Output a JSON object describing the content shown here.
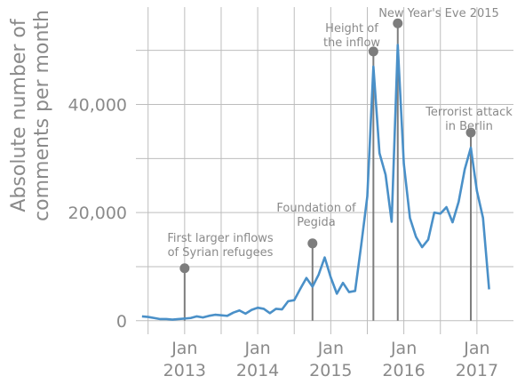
{
  "chart_data": {
    "type": "line",
    "title": "",
    "ylabel": "Absolute number of comments per month",
    "ylabel_lines": [
      "Absolute number of",
      "comments per month"
    ],
    "ylim": [
      -2500,
      58000
    ],
    "xlim": [
      "2012-05",
      "2017-07"
    ],
    "grid": true,
    "y_ticks": [
      {
        "value": 0,
        "label": "0"
      },
      {
        "value": 20000,
        "label": "20,000"
      },
      {
        "value": 40000,
        "label": "40,000"
      }
    ],
    "x_ticks": [
      {
        "date": "2013-01",
        "line1": "Jan",
        "line2": "2013"
      },
      {
        "date": "2014-01",
        "line1": "Jan",
        "line2": "2014"
      },
      {
        "date": "2015-01",
        "line1": "Jan",
        "line2": "2015"
      },
      {
        "date": "2016-01",
        "line1": "Jan",
        "line2": "2016"
      },
      {
        "date": "2017-01",
        "line1": "Jan",
        "line2": "2017"
      }
    ],
    "series": [
      {
        "color": "#4a90c8",
        "points": [
          [
            "2012-06",
            800
          ],
          [
            "2012-07",
            700
          ],
          [
            "2012-08",
            500
          ],
          [
            "2012-09",
            300
          ],
          [
            "2012-10",
            300
          ],
          [
            "2012-11",
            200
          ],
          [
            "2012-12",
            300
          ],
          [
            "2013-01",
            400
          ],
          [
            "2013-02",
            500
          ],
          [
            "2013-03",
            800
          ],
          [
            "2013-04",
            600
          ],
          [
            "2013-05",
            900
          ],
          [
            "2013-06",
            1100
          ],
          [
            "2013-07",
            1000
          ],
          [
            "2013-08",
            900
          ],
          [
            "2013-09",
            1500
          ],
          [
            "2013-10",
            1900
          ],
          [
            "2013-11",
            1300
          ],
          [
            "2013-12",
            2000
          ],
          [
            "2014-01",
            2400
          ],
          [
            "2014-02",
            2200
          ],
          [
            "2014-03",
            1400
          ],
          [
            "2014-04",
            2200
          ],
          [
            "2014-05",
            2100
          ],
          [
            "2014-06",
            3600
          ],
          [
            "2014-07",
            3800
          ],
          [
            "2014-08",
            5900
          ],
          [
            "2014-09",
            7900
          ],
          [
            "2014-10",
            6300
          ],
          [
            "2014-11",
            8500
          ],
          [
            "2014-12",
            11700
          ],
          [
            "2015-01",
            8000
          ],
          [
            "2015-02",
            5000
          ],
          [
            "2015-03",
            7000
          ],
          [
            "2015-04",
            5300
          ],
          [
            "2015-05",
            5500
          ],
          [
            "2015-06",
            14000
          ],
          [
            "2015-07",
            23000
          ],
          [
            "2015-08",
            47000
          ],
          [
            "2015-09",
            31000
          ],
          [
            "2015-10",
            27000
          ],
          [
            "2015-11",
            18300
          ],
          [
            "2015-12",
            51000
          ],
          [
            "2016-01",
            29000
          ],
          [
            "2016-02",
            19000
          ],
          [
            "2016-03",
            15500
          ],
          [
            "2016-04",
            13600
          ],
          [
            "2016-05",
            15000
          ],
          [
            "2016-06",
            20000
          ],
          [
            "2016-07",
            19800
          ],
          [
            "2016-08",
            21000
          ],
          [
            "2016-09",
            18200
          ],
          [
            "2016-10",
            22000
          ],
          [
            "2016-11",
            28000
          ],
          [
            "2016-12",
            32000
          ],
          [
            "2017-01",
            24000
          ],
          [
            "2017-02",
            19000
          ],
          [
            "2017-03",
            5800
          ]
        ]
      }
    ],
    "annotations": [
      {
        "date": "2013-01",
        "value": 9700,
        "lines": [
          "First larger inflows",
          "of Syrian refugees"
        ]
      },
      {
        "date": "2014-10",
        "value": 14300,
        "lines": [
          "Foundation of",
          "Pegida"
        ]
      },
      {
        "date": "2015-08",
        "value": 49800,
        "lines": [
          "Height of",
          "the inflow"
        ]
      },
      {
        "date": "2015-12",
        "value": 55000,
        "lines": [
          "New Year's Eve 2015"
        ]
      },
      {
        "date": "2016-12",
        "value": 34800,
        "lines": [
          "Terrorist attack",
          "in Berlin"
        ]
      }
    ]
  }
}
